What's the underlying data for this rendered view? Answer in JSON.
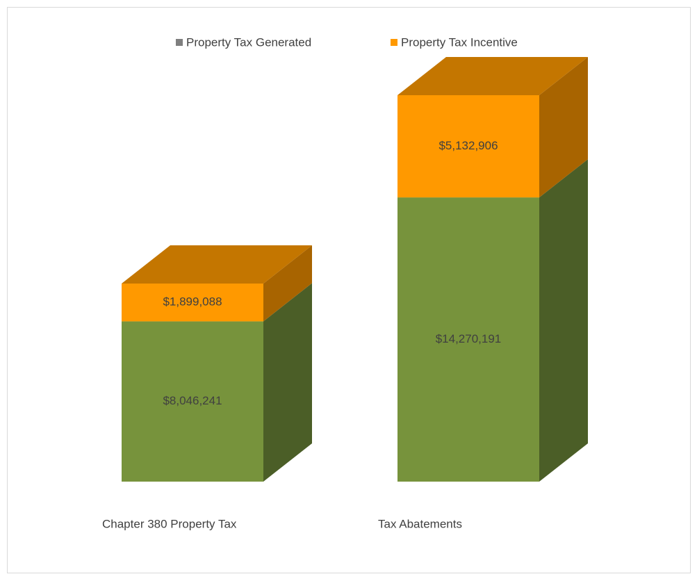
{
  "chart_data": {
    "type": "bar3d_stacked",
    "categories": [
      "Chapter 380 Property Tax",
      "Tax Abatements"
    ],
    "series": [
      {
        "name": "Property Tax Generated",
        "color": "#77933c",
        "side_color": "#4b5e27",
        "legend_color": "#7f7f7f",
        "values": [
          8046241,
          14270191
        ],
        "value_labels": [
          "$8,046,241",
          "$14,270,191"
        ]
      },
      {
        "name": "Property Tax Incentive",
        "color": "#ff9900",
        "side_color": "#a86400",
        "top_color": "#c47600",
        "legend_color": "#ff9900",
        "values": [
          1899088,
          5132906
        ],
        "value_labels": [
          "$1,899,088",
          "$5,132,906"
        ]
      }
    ],
    "legend": "top"
  }
}
